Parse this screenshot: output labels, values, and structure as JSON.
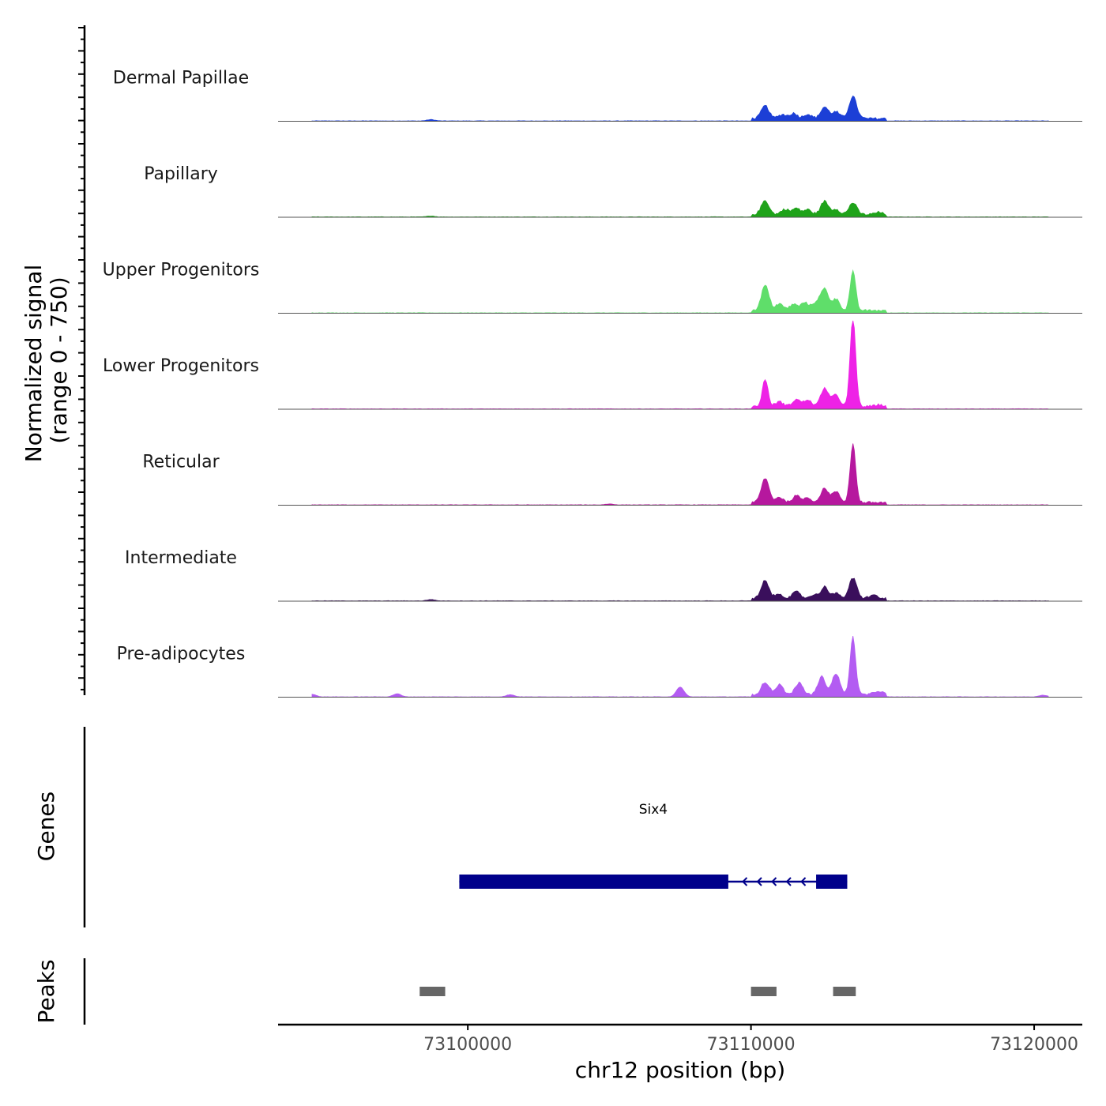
{
  "chart_data": {
    "type": "area",
    "chromosome": "chr12",
    "xlabel": "chr12 position (bp)",
    "xlim": [
      73093300,
      73121700
    ],
    "x_ticks": [
      73100000,
      73110000,
      73120000
    ],
    "x_tick_labels": [
      "73100000",
      "73110000",
      "73120000"
    ],
    "ylabel": "Normalized signal",
    "ylabel_range": "(range 0 - 750)",
    "ylim": [
      0,
      750
    ],
    "tracks": [
      {
        "name": "Dermal Papillae",
        "color": "#1c3fd6",
        "peaks": [
          [
            73098700,
            15
          ],
          [
            73110500,
            145
          ],
          [
            73111100,
            45
          ],
          [
            73111500,
            60
          ],
          [
            73112000,
            50
          ],
          [
            73112600,
            130
          ],
          [
            73113000,
            75
          ],
          [
            73113600,
            250
          ]
        ]
      },
      {
        "name": "Papillary",
        "color": "#1fa31a",
        "peaks": [
          [
            73098700,
            10
          ],
          [
            73110500,
            160
          ],
          [
            73111200,
            60
          ],
          [
            73111600,
            70
          ],
          [
            73112000,
            55
          ],
          [
            73112600,
            150
          ],
          [
            73113000,
            60
          ],
          [
            73113600,
            135
          ],
          [
            73114500,
            25
          ]
        ]
      },
      {
        "name": "Upper Progenitors",
        "color": "#5fde6a",
        "peaks": [
          [
            73110500,
            285
          ],
          [
            73111000,
            75
          ],
          [
            73111500,
            70
          ],
          [
            73111900,
            90
          ],
          [
            73112300,
            90
          ],
          [
            73112600,
            240
          ],
          [
            73113000,
            130
          ],
          [
            73113600,
            440
          ]
        ]
      },
      {
        "name": "Lower Progenitors",
        "color": "#ee22e6",
        "peaks": [
          [
            73110500,
            310
          ],
          [
            73111000,
            55
          ],
          [
            73111600,
            80
          ],
          [
            73112000,
            75
          ],
          [
            73112600,
            210
          ],
          [
            73113000,
            130
          ],
          [
            73113600,
            1000
          ],
          [
            73114500,
            20
          ]
        ]
      },
      {
        "name": "Reticular",
        "color": "#b6189e",
        "peaks": [
          [
            73105000,
            10
          ],
          [
            73110500,
            275
          ],
          [
            73111000,
            60
          ],
          [
            73111600,
            75
          ],
          [
            73112000,
            55
          ],
          [
            73112600,
            160
          ],
          [
            73113000,
            120
          ],
          [
            73113600,
            660
          ]
        ]
      },
      {
        "name": "Intermediate",
        "color": "#3a0f5c",
        "peaks": [
          [
            73098700,
            15
          ],
          [
            73110500,
            200
          ],
          [
            73111000,
            50
          ],
          [
            73111600,
            75
          ],
          [
            73112200,
            40
          ],
          [
            73112600,
            130
          ],
          [
            73113000,
            55
          ],
          [
            73113600,
            230
          ],
          [
            73114300,
            40
          ]
        ]
      },
      {
        "name": "Pre-adipocytes",
        "color": "#b35cf2",
        "peaks": [
          [
            73094500,
            30
          ],
          [
            73097500,
            35
          ],
          [
            73101500,
            25
          ],
          [
            73107500,
            110
          ],
          [
            73110500,
            140
          ],
          [
            73111000,
            110
          ],
          [
            73111700,
            130
          ],
          [
            73112500,
            200
          ],
          [
            73113000,
            240
          ],
          [
            73113600,
            650
          ],
          [
            73114500,
            40
          ],
          [
            73120300,
            20
          ]
        ]
      }
    ],
    "genes": [
      {
        "name": "Six4",
        "strand": "-",
        "start": 73099700,
        "end": 73113400,
        "exons": [
          [
            73099700,
            73109200
          ],
          [
            73112300,
            73113400
          ]
        ]
      }
    ],
    "peaks_track": {
      "label": "Peaks",
      "regions": [
        [
          73098300,
          73099200
        ],
        [
          73110000,
          73110900
        ],
        [
          73112900,
          73113700
        ]
      ]
    },
    "track_labels": {
      "genes": "Genes",
      "peaks": "Peaks"
    }
  }
}
